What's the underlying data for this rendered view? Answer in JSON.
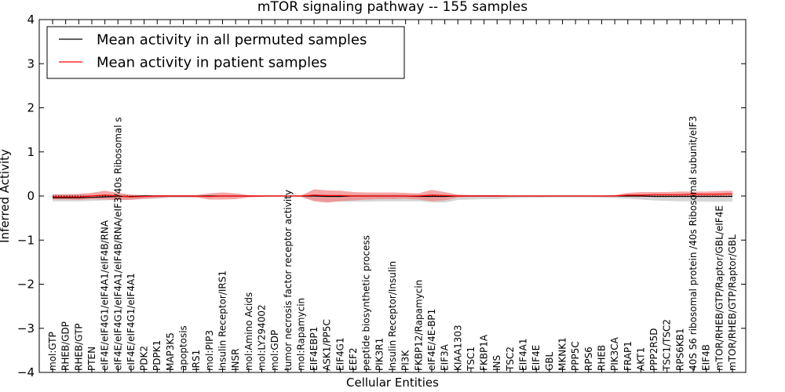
{
  "chart_data": {
    "type": "line",
    "title": "mTOR signaling pathway -- 155 samples",
    "xlabel": "Cellular Entities",
    "ylabel": "Inferred Activity",
    "ylim": [
      -4,
      4
    ],
    "yticks": [
      "4",
      "3",
      "2",
      "1",
      "0",
      "−1",
      "−2",
      "−3",
      "−4"
    ],
    "legend": {
      "location": "top-left",
      "entries": [
        "Mean activity in all permuted samples",
        "Mean activity in patient samples"
      ]
    },
    "colors": {
      "permuted_line": "#000000",
      "patient_line": "#ff0000",
      "permuted_band": "#bbbbbb",
      "patient_band": "#f08080"
    },
    "categories": [
      "mol:GTP",
      "RHEB/GDP",
      "RHEB/GTP",
      "PTEN",
      "eIF4E/eIF4G1/eIF4A1/eIF4B/RNA",
      "eIF4E/eIF4G1/eIF4A1/eIF4B/RNA/eIF3/40s Ribosomal s",
      "eIF4E/eIF4G1/eIF4A1",
      "PDK2",
      "PDPK1",
      "MAP3K5",
      "apoptosis",
      "IRS1",
      "mol:PIP3",
      "Insulin Receptor/IRS1",
      "INSR",
      "mol:Amino Acids",
      "mol:LY294002",
      "mol:GDP",
      "tumor necrosis factor receptor activity",
      "mol:Rapamycin",
      "EIF4EBP1",
      "ASK1/PP5C",
      "EIF4G1",
      "EEF2",
      "peptide biosynthetic process",
      "PIK3R1",
      "Insulin Receptor/Insulin",
      "PI3K",
      "FKBP12/Rapamycin",
      "eIF4E/4E-BP1",
      "EIF3A",
      "KIAA1303",
      "TSC1",
      "FKBP1A",
      "INS",
      "TSC2",
      "EIF4A1",
      "EIF4E",
      "GBL",
      "MKNK1",
      "PPP5C",
      "RPS6",
      "RHEB",
      "PIK3CA",
      "FRAP1",
      "AKT1",
      "PPP2R5D",
      "TSC1/TSC2",
      "RPS6KB1",
      "40S S6 ribosomal protein /40s Ribosomal subunit/eIF3",
      "EIF4B",
      "mTOR/RHEB/GTP/Raptor/GBL/eIF4E",
      "mTOR/RHEB/GTP/Raptor/GBL"
    ],
    "series": [
      {
        "name": "Mean activity in all permuted samples",
        "values": [
          -0.04,
          -0.04,
          -0.04,
          -0.03,
          -0.02,
          -0.01,
          -0.01,
          0,
          0,
          0,
          0,
          0,
          0,
          0,
          0,
          0,
          0,
          0,
          0,
          0,
          0,
          -0.01,
          -0.01,
          0,
          0,
          0,
          0,
          0,
          -0.01,
          -0.01,
          -0.01,
          0,
          0,
          0,
          0,
          0,
          0,
          0,
          0,
          0,
          0,
          0,
          0,
          0,
          0,
          0,
          -0.01,
          -0.01,
          -0.01,
          -0.01,
          -0.01,
          -0.01,
          -0.01
        ],
        "band_upper": [
          0.03,
          0.03,
          0.03,
          0.03,
          0.03,
          0.03,
          0.02,
          0.02,
          0.02,
          0.01,
          0.01,
          0.01,
          0.01,
          0.01,
          0.01,
          0.01,
          0,
          0,
          0,
          0,
          0.03,
          0.04,
          0.04,
          0.03,
          0.03,
          0.03,
          0.03,
          0.03,
          0.03,
          0.04,
          0.04,
          0.02,
          0.02,
          0.02,
          0.02,
          0.01,
          0.01,
          0.01,
          0.01,
          0.01,
          0.01,
          0.01,
          0.01,
          0.01,
          0.01,
          0.02,
          0.02,
          0.02,
          0.03,
          0.04,
          0.05,
          0.06,
          0.06
        ],
        "band_lower": [
          -0.12,
          -0.12,
          -0.12,
          -0.11,
          -0.1,
          -0.09,
          -0.08,
          -0.07,
          -0.06,
          -0.04,
          -0.04,
          -0.03,
          -0.03,
          -0.02,
          -0.02,
          -0.01,
          -0.01,
          0,
          0,
          0,
          -0.1,
          -0.12,
          -0.13,
          -0.13,
          -0.13,
          -0.12,
          -0.12,
          -0.12,
          -0.12,
          -0.14,
          -0.15,
          -0.09,
          -0.08,
          -0.07,
          -0.07,
          -0.05,
          -0.04,
          -0.04,
          -0.03,
          -0.03,
          -0.03,
          -0.03,
          -0.04,
          -0.05,
          -0.06,
          -0.08,
          -0.1,
          -0.11,
          -0.12,
          -0.12,
          -0.13,
          -0.13,
          -0.13
        ]
      },
      {
        "name": "Mean activity in patient samples",
        "values": [
          -0.02,
          -0.02,
          -0.02,
          0,
          0.02,
          0,
          -0.02,
          -0.01,
          0,
          0,
          0,
          0,
          -0.01,
          0,
          0,
          0,
          0,
          0,
          0,
          0,
          0.02,
          0.01,
          0.01,
          0,
          0,
          0,
          0,
          0,
          0,
          0.02,
          0.01,
          0,
          0,
          0,
          0,
          0,
          0,
          0,
          0,
          0,
          0,
          0,
          0,
          0,
          0.02,
          0.02,
          0.03,
          0.03,
          0.03,
          0.04,
          0.04,
          0.04,
          0.05
        ],
        "band_upper": [
          0.04,
          0.04,
          0.05,
          0.07,
          0.12,
          0.07,
          0.03,
          0.02,
          0.02,
          0.02,
          0.02,
          0.02,
          0.06,
          0.08,
          0.06,
          0.02,
          0.01,
          0,
          0,
          0.01,
          0.15,
          0.13,
          0.12,
          0.09,
          0.08,
          0.08,
          0.08,
          0.07,
          0.06,
          0.14,
          0.09,
          0.03,
          0.02,
          0.02,
          0.02,
          0.01,
          0.01,
          0.01,
          0.01,
          0.01,
          0.01,
          0.01,
          0.01,
          0.02,
          0.07,
          0.09,
          0.09,
          0.09,
          0.1,
          0.1,
          0.1,
          0.11,
          0.12
        ],
        "band_lower": [
          -0.08,
          -0.08,
          -0.09,
          -0.07,
          -0.08,
          -0.09,
          -0.09,
          -0.06,
          -0.04,
          -0.02,
          -0.02,
          -0.03,
          -0.08,
          -0.08,
          -0.07,
          -0.03,
          -0.02,
          0,
          0,
          -0.02,
          -0.12,
          -0.15,
          -0.12,
          -0.1,
          -0.08,
          -0.07,
          -0.07,
          -0.06,
          -0.08,
          -0.12,
          -0.1,
          -0.03,
          -0.02,
          -0.02,
          -0.02,
          -0.01,
          -0.01,
          -0.01,
          -0.01,
          -0.01,
          -0.01,
          -0.01,
          -0.01,
          -0.01,
          -0.02,
          -0.02,
          -0.02,
          -0.02,
          -0.02,
          -0.02,
          -0.02,
          -0.02,
          -0.01
        ]
      }
    ]
  }
}
